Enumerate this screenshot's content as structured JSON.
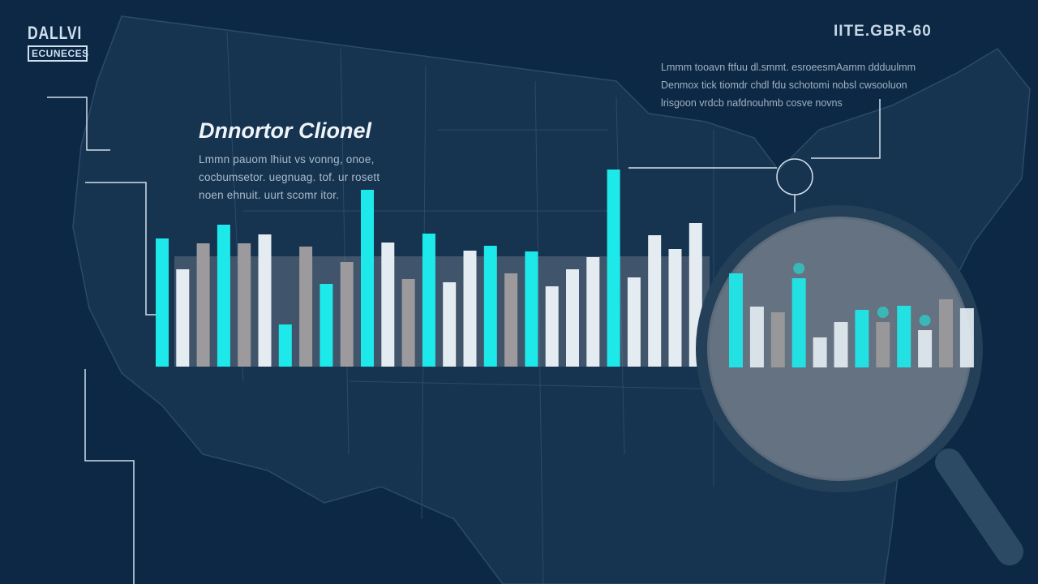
{
  "logo": {
    "line1": "DALLVI",
    "line2": "ECUNECES"
  },
  "header_right": {
    "code": "IITE.GBR-60",
    "paragraph": [
      "Lmmm tooavn ftfuu dl.smmt. esroeesmAamm ddduulmm",
      "Denmox tick tiomdr chdl fdu schotomi nobsl cwsooluon",
      "lrisgoon vrdcb nafdnouhmb cosve novns"
    ]
  },
  "panel": {
    "title": "Dnnortor Clionel",
    "paragraph": [
      "Lmmn pauom lhiut vs vonng, onoe,",
      "cocbumsetor. uegnuag. tof. ur rosett",
      "noen ehnuit. uurt scomr itor."
    ]
  },
  "colors": {
    "background": "#0d2844",
    "map": "#163350",
    "map_border": "#2b4b6b",
    "cyan": "#1de9ea",
    "white": "#e4ecf2",
    "gray": "#9c9a9c"
  },
  "chart_data": [
    {
      "type": "bar",
      "title": "",
      "xlabel": "",
      "ylabel": "",
      "ylim": [
        0,
        250
      ],
      "grid": false,
      "colors": [
        "cyan",
        "white",
        "gray",
        "cyan",
        "gray",
        "white",
        "cyan",
        "gray",
        "cyan",
        "gray",
        "cyan",
        "white",
        "gray",
        "cyan",
        "white",
        "white",
        "cyan",
        "gray",
        "cyan",
        "white",
        "white",
        "white",
        "cyan",
        "white",
        "white",
        "white",
        "white"
      ],
      "values": [
        158,
        120,
        152,
        175,
        152,
        163,
        52,
        148,
        102,
        129,
        218,
        153,
        108,
        164,
        104,
        143,
        149,
        115,
        142,
        99,
        120,
        135,
        243,
        110,
        162,
        145,
        177
      ]
    },
    {
      "type": "bar",
      "title": "",
      "ylim": [
        0,
        250
      ],
      "grid": false,
      "colors": [
        "cyan",
        "white",
        "gray",
        "cyan",
        "white",
        "white",
        "cyan",
        "gray",
        "cyan",
        "white",
        "gray",
        "white"
      ],
      "values": [
        116,
        75,
        68,
        110,
        37,
        56,
        71,
        56,
        76,
        46,
        84,
        73
      ],
      "highlighted": [
        3,
        7,
        9
      ]
    }
  ],
  "icons": {
    "magnifier": "magnifying-glass-icon",
    "callout": "callout-circle-icon"
  }
}
